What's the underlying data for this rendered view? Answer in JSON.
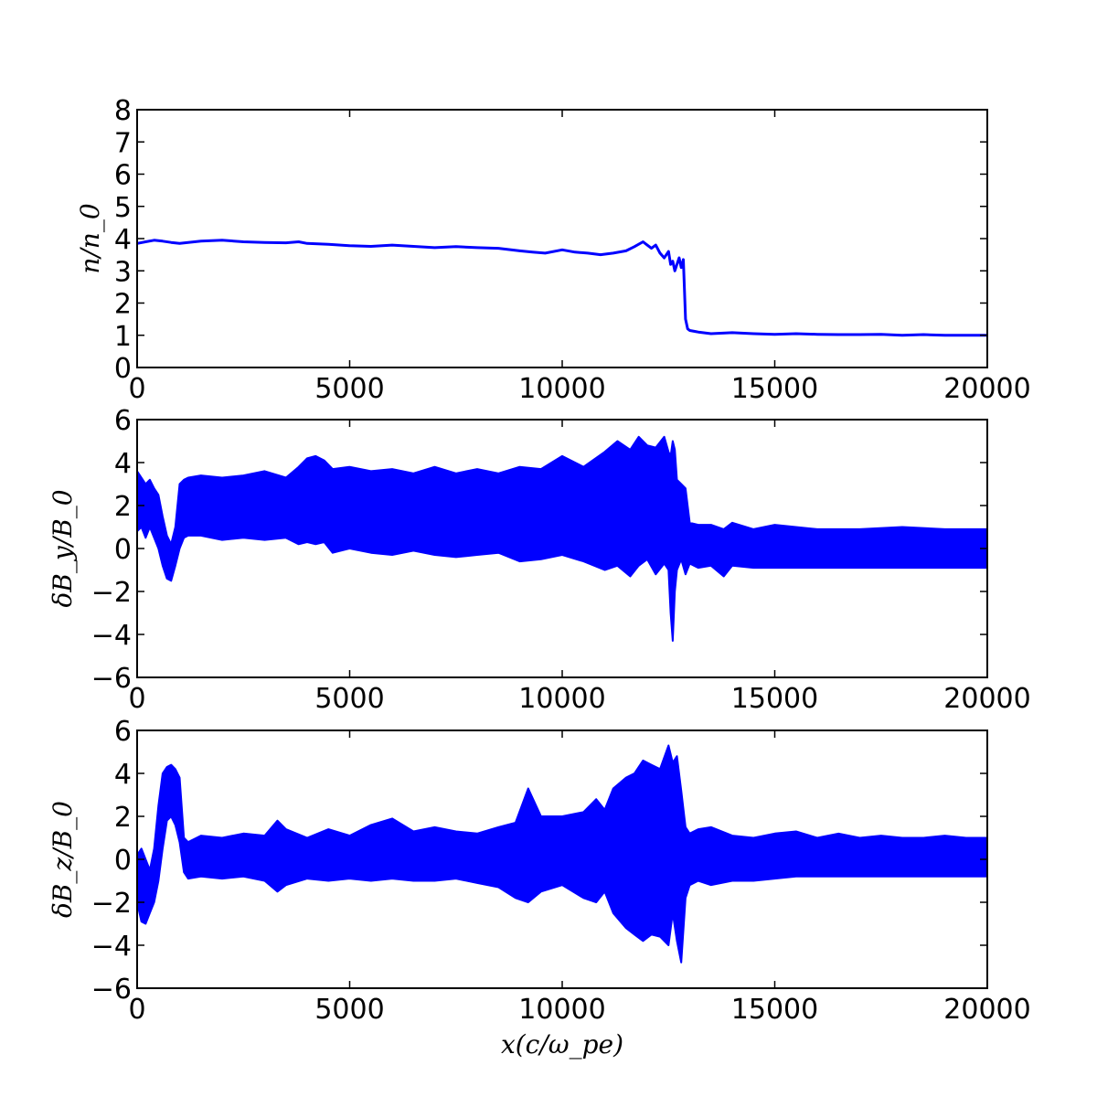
{
  "figure": {
    "xlabel": "x(c/ω_pe)"
  },
  "chart_data": [
    {
      "type": "line",
      "panel": "top",
      "ylabel": "n/n_0",
      "xlim": [
        0,
        20000
      ],
      "ylim": [
        0,
        8
      ],
      "xticks": [
        0,
        5000,
        10000,
        15000,
        20000
      ],
      "yticks": [
        0,
        1,
        2,
        3,
        4,
        5,
        6,
        7,
        8
      ],
      "color": "#0000ff",
      "series": [
        {
          "x": [
            0,
            200,
            400,
            600,
            800,
            1000,
            1500,
            2000,
            2500,
            3000,
            3500,
            3800,
            4000,
            4500,
            5000,
            5500,
            6000,
            6500,
            7000,
            7500,
            8000,
            8500,
            9000,
            9300,
            9600,
            10000,
            10300,
            10600,
            10900,
            11200,
            11500,
            11700,
            11900,
            12000,
            12100,
            12200,
            12300,
            12400,
            12500,
            12550,
            12600,
            12650,
            12700,
            12750,
            12800,
            12850,
            12900,
            12950,
            13000,
            13200,
            13500,
            14000,
            14500,
            15000,
            15500,
            16000,
            16500,
            17000,
            17500,
            18000,
            18500,
            19000,
            19500,
            20000
          ],
          "y": [
            3.85,
            3.9,
            3.95,
            3.92,
            3.88,
            3.85,
            3.92,
            3.95,
            3.9,
            3.88,
            3.87,
            3.9,
            3.85,
            3.82,
            3.78,
            3.76,
            3.8,
            3.76,
            3.72,
            3.75,
            3.72,
            3.7,
            3.62,
            3.58,
            3.55,
            3.65,
            3.58,
            3.55,
            3.5,
            3.55,
            3.62,
            3.75,
            3.9,
            3.8,
            3.7,
            3.8,
            3.55,
            3.4,
            3.6,
            3.2,
            3.3,
            3.0,
            3.2,
            3.4,
            3.1,
            3.35,
            1.5,
            1.2,
            1.15,
            1.1,
            1.05,
            1.08,
            1.05,
            1.03,
            1.05,
            1.03,
            1.02,
            1.02,
            1.03,
            1.0,
            1.02,
            1.0,
            1.0,
            1.0
          ]
        }
      ]
    },
    {
      "type": "line",
      "panel": "middle",
      "ylabel": "δB_y/B_0",
      "xlim": [
        0,
        20000
      ],
      "ylim": [
        -6,
        6
      ],
      "xticks": [
        0,
        5000,
        10000,
        15000,
        20000
      ],
      "yticks": [
        -6,
        -4,
        -2,
        0,
        2,
        4,
        6
      ],
      "color": "#0000ff",
      "series": [
        {
          "x": [
            0,
            100,
            200,
            300,
            400,
            500,
            600,
            700,
            800,
            900,
            1000,
            1100,
            1200,
            1500,
            2000,
            2500,
            3000,
            3500,
            3800,
            4000,
            4200,
            4400,
            4600,
            5000,
            5500,
            6000,
            6500,
            7000,
            7500,
            8000,
            8500,
            9000,
            9500,
            10000,
            10500,
            11000,
            11300,
            11600,
            11800,
            12000,
            12200,
            12400,
            12500,
            12550,
            12600,
            12650,
            12700,
            12800,
            12900,
            13000,
            13200,
            13500,
            13800,
            14000,
            14500,
            15000,
            16000,
            17000,
            18000,
            19000,
            20000
          ],
          "y_min": [
            0.8,
            1.0,
            0.5,
            1.0,
            0.5,
            0.0,
            -0.8,
            -1.4,
            -1.5,
            -0.8,
            0.0,
            0.5,
            0.6,
            0.6,
            0.4,
            0.5,
            0.4,
            0.5,
            0.2,
            0.3,
            0.2,
            0.3,
            -0.2,
            0.0,
            -0.2,
            -0.3,
            -0.1,
            -0.3,
            -0.4,
            -0.3,
            -0.2,
            -0.6,
            -0.5,
            -0.3,
            -0.6,
            -1.0,
            -0.8,
            -1.3,
            -0.8,
            -0.5,
            -1.2,
            -0.7,
            -1.0,
            -3.0,
            -4.3,
            -2.0,
            -1.0,
            -0.5,
            -1.2,
            -0.7,
            -0.9,
            -0.8,
            -1.3,
            -0.8,
            -0.9,
            -0.9,
            -0.9,
            -0.9,
            -0.9,
            -0.9,
            -0.9
          ],
          "y_max": [
            3.6,
            3.3,
            3.0,
            3.2,
            2.8,
            2.5,
            1.5,
            0.6,
            0.2,
            1.0,
            3.0,
            3.2,
            3.3,
            3.4,
            3.3,
            3.4,
            3.6,
            3.3,
            3.8,
            4.2,
            4.3,
            4.1,
            3.7,
            3.8,
            3.6,
            3.7,
            3.5,
            3.8,
            3.5,
            3.7,
            3.5,
            3.8,
            3.7,
            4.3,
            3.8,
            4.5,
            5.0,
            4.6,
            5.2,
            4.8,
            4.7,
            5.2,
            4.5,
            4.3,
            5.0,
            4.6,
            3.2,
            3.0,
            2.8,
            1.2,
            1.1,
            1.1,
            0.9,
            1.2,
            0.9,
            1.1,
            0.9,
            0.9,
            1.0,
            0.9,
            0.9
          ]
        }
      ]
    },
    {
      "type": "line",
      "panel": "bottom",
      "ylabel": "δB_z/B_0",
      "xlim": [
        0,
        20000
      ],
      "ylim": [
        -6,
        6
      ],
      "xticks": [
        0,
        5000,
        10000,
        15000,
        20000
      ],
      "yticks": [
        -6,
        -4,
        -2,
        0,
        2,
        4,
        6
      ],
      "color": "#0000ff",
      "series": [
        {
          "x": [
            0,
            100,
            200,
            300,
            400,
            500,
            600,
            700,
            800,
            900,
            1000,
            1100,
            1200,
            1500,
            2000,
            2500,
            3000,
            3300,
            3500,
            4000,
            4500,
            5000,
            5500,
            6000,
            6500,
            7000,
            7500,
            8000,
            8500,
            8900,
            9200,
            9500,
            10000,
            10500,
            10800,
            11000,
            11200,
            11500,
            11700,
            11900,
            12100,
            12300,
            12500,
            12600,
            12700,
            12800,
            12900,
            13000,
            13200,
            13500,
            14000,
            14500,
            15000,
            15500,
            16000,
            16500,
            17000,
            17500,
            18000,
            18500,
            19000,
            19500,
            20000
          ],
          "y_min": [
            -2.0,
            -2.9,
            -3.0,
            -2.5,
            -2.0,
            -1.0,
            0.5,
            1.8,
            2.0,
            1.6,
            0.8,
            -0.6,
            -0.9,
            -0.8,
            -0.9,
            -0.8,
            -1.0,
            -1.5,
            -1.2,
            -0.9,
            -1.0,
            -0.9,
            -1.0,
            -0.9,
            -1.0,
            -1.0,
            -0.9,
            -1.1,
            -1.3,
            -1.8,
            -2.0,
            -1.5,
            -1.2,
            -1.8,
            -2.0,
            -1.5,
            -2.5,
            -3.2,
            -3.5,
            -3.8,
            -3.5,
            -3.6,
            -4.0,
            -2.5,
            -3.8,
            -4.8,
            -1.8,
            -1.2,
            -1.0,
            -1.2,
            -1.0,
            -1.0,
            -0.9,
            -0.8,
            -0.8,
            -0.8,
            -0.8,
            -0.8,
            -0.8,
            -0.8,
            -0.8,
            -0.8,
            -0.8
          ],
          "y_max": [
            0.2,
            0.5,
            0.0,
            -0.5,
            0.5,
            2.5,
            4.0,
            4.3,
            4.4,
            4.2,
            3.8,
            1.0,
            0.8,
            1.1,
            1.0,
            1.2,
            1.1,
            1.8,
            1.4,
            1.0,
            1.4,
            1.1,
            1.6,
            1.9,
            1.3,
            1.5,
            1.3,
            1.2,
            1.5,
            1.7,
            3.3,
            2.0,
            2.0,
            2.2,
            2.8,
            2.3,
            3.3,
            3.8,
            4.0,
            4.6,
            4.4,
            4.2,
            5.3,
            4.5,
            4.8,
            3.2,
            1.5,
            1.2,
            1.4,
            1.5,
            1.1,
            1.0,
            1.2,
            1.3,
            1.0,
            1.2,
            1.0,
            1.1,
            1.0,
            1.0,
            1.1,
            1.0,
            1.0
          ]
        }
      ]
    }
  ]
}
